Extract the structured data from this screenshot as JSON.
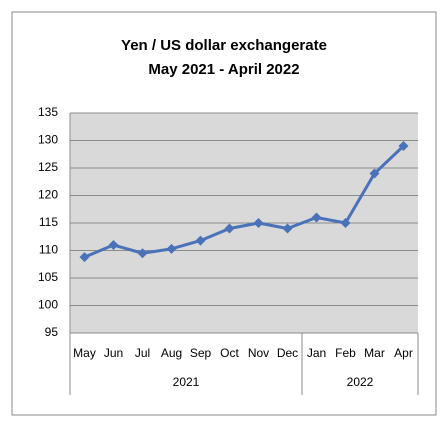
{
  "chart_data": {
    "type": "line",
    "title": "Yen / US dollar exchangerate",
    "subtitle": "May 2021  - April 2022",
    "categories": [
      "May",
      "Jun",
      "Jul",
      "Aug",
      "Sep",
      "Oct",
      "Nov",
      "Dec",
      "Jan",
      "Feb",
      "Mar",
      "Apr"
    ],
    "year_groups": [
      {
        "label": "2021",
        "count": 8
      },
      {
        "label": "2022",
        "count": 4
      }
    ],
    "values": [
      108.8,
      111,
      109.5,
      110.3,
      111.8,
      114,
      115,
      114,
      116,
      115,
      124,
      129
    ],
    "color": "#4a72b8",
    "ylim": [
      95,
      135
    ],
    "yticks": [
      95,
      100,
      105,
      110,
      115,
      120,
      125,
      130,
      135
    ],
    "grid": true
  }
}
